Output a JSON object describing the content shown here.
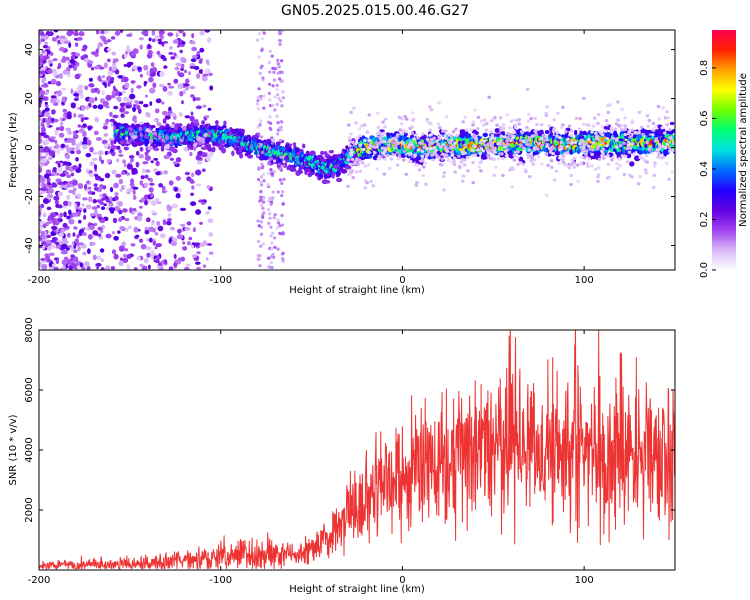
{
  "title": "GN05.2025.015.00.46.G27",
  "chart_data": [
    {
      "type": "heatmap",
      "xlabel": "Height of straight line (km)",
      "ylabel": "Frequency (Hz)",
      "xlim": [
        -200,
        150
      ],
      "ylim": [
        -50,
        48
      ],
      "x_ticks": [
        -200,
        -100,
        0,
        100
      ],
      "x_tick_labels": [
        "-200",
        "-100",
        "0",
        "100"
      ],
      "y_ticks": [
        -40,
        -20,
        0,
        20,
        40
      ],
      "y_tick_labels": [
        "-40",
        "-20",
        "0",
        "20",
        "40"
      ],
      "colorbar": {
        "label": "Normalized spectral amplitude",
        "range": [
          0,
          0.95
        ],
        "ticks": [
          0.0,
          0.2,
          0.4,
          0.6,
          0.8
        ],
        "tick_labels": [
          "0.0",
          "0.2",
          "0.4",
          "0.6",
          "0.8"
        ],
        "colors": [
          "#ffffff",
          "#d8b8f8",
          "#a040f0",
          "#6000e0",
          "#2000ff",
          "#0070ff",
          "#00e0e0",
          "#00ff70",
          "#70ff00",
          "#ffff00",
          "#ffa000",
          "#ff2000",
          "#ff0050"
        ]
      },
      "series": [
        {
          "x": [
            -155,
            -140,
            -125,
            -110,
            -100,
            -95,
            -90,
            -85,
            -80,
            -75,
            -70,
            -65,
            -60,
            -55,
            -50,
            -45,
            -40,
            -35,
            -30,
            -25,
            -20,
            -10,
            0,
            10,
            20,
            30,
            40,
            50,
            60,
            70,
            80,
            90,
            100,
            110,
            120,
            130,
            140,
            150
          ],
          "y": [
            6,
            5,
            4,
            5,
            5,
            4,
            3,
            1,
            0,
            -1,
            -2,
            -3,
            -4,
            -5,
            -6,
            -8,
            -9,
            -7,
            -4,
            -1,
            0,
            1,
            1,
            0,
            1,
            1,
            1,
            1,
            2,
            2,
            2,
            1,
            2,
            2,
            2,
            2,
            2,
            2
          ]
        }
      ],
      "grid": false,
      "legend": "none"
    },
    {
      "type": "line",
      "xlabel": "Height of straight line (km)",
      "ylabel": "SNR (10 * v/v)",
      "xlim": [
        -200,
        150
      ],
      "ylim": [
        0,
        8000
      ],
      "x_ticks": [
        -200,
        -100,
        0,
        100
      ],
      "x_tick_labels": [
        "-200",
        "-100",
        "0",
        "100"
      ],
      "y_ticks": [
        2000,
        4000,
        6000,
        8000
      ],
      "y_tick_labels": [
        "2000",
        "4000",
        "6000",
        "8000"
      ],
      "line_color": "#ee3333",
      "series": [
        {
          "x": [
            -200,
            -180,
            -160,
            -140,
            -130,
            -120,
            -110,
            -100,
            -90,
            -80,
            -70,
            -60,
            -50,
            -40,
            -30,
            -20,
            -10,
            0,
            10,
            20,
            30,
            40,
            50,
            60,
            70,
            80,
            90,
            100,
            110,
            120,
            130,
            140,
            150
          ],
          "y": [
            150,
            170,
            190,
            220,
            260,
            300,
            400,
            480,
            520,
            520,
            480,
            450,
            800,
            1200,
            1800,
            2300,
            2700,
            3000,
            3300,
            3700,
            3900,
            4000,
            4050,
            4100,
            4000,
            3900,
            4000,
            4000,
            4050,
            3900,
            3800,
            3700,
            3700
          ],
          "peaks": [
            [
              -80,
              1000
            ],
            [
              -20,
              3700
            ],
            [
              -12,
              4600
            ],
            [
              5,
              5800
            ],
            [
              40,
              6300
            ],
            [
              60,
              6200
            ],
            [
              80,
              7000
            ],
            [
              95,
              6500
            ],
            [
              108,
              8000
            ],
            [
              120,
              7000
            ],
            [
              130,
              6000
            ]
          ]
        }
      ],
      "grid": false,
      "legend": "none"
    }
  ]
}
